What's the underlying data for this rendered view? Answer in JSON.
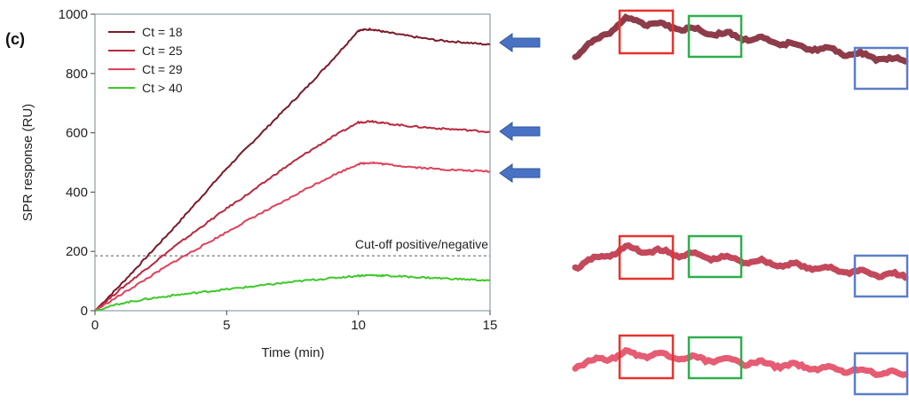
{
  "panel_label": "(c)",
  "chart_data": {
    "type": "line",
    "xlabel": "Time (min)",
    "ylabel": "SPR response (RU)",
    "xlim": [
      0,
      15
    ],
    "ylim": [
      0,
      1000
    ],
    "xticks": [
      0,
      5,
      10,
      15
    ],
    "yticks": [
      0,
      200,
      400,
      600,
      800,
      1000
    ],
    "legend_position": "top-left",
    "series": [
      {
        "name": "Ct = 18",
        "color": "#7a1a2a",
        "x": [
          0,
          1,
          2,
          3,
          4,
          5,
          6,
          7,
          8,
          9,
          10,
          10.5,
          11,
          12,
          13,
          14,
          15
        ],
        "y": [
          0,
          90,
          185,
          280,
          380,
          480,
          570,
          660,
          750,
          845,
          945,
          950,
          940,
          925,
          912,
          905,
          897
        ]
      },
      {
        "name": "Ct = 25",
        "color": "#b8283e",
        "x": [
          0,
          1,
          2,
          3,
          4,
          5,
          6,
          7,
          8,
          9,
          10,
          10.5,
          11,
          12,
          13,
          14,
          15
        ],
        "y": [
          0,
          75,
          145,
          215,
          280,
          345,
          405,
          470,
          530,
          585,
          635,
          640,
          632,
          622,
          615,
          610,
          603
        ]
      },
      {
        "name": "Ct = 29",
        "color": "#e0405a",
        "x": [
          0,
          1,
          2,
          3,
          4,
          5,
          6,
          7,
          8,
          9,
          10,
          10.5,
          11,
          12,
          13,
          14,
          15
        ],
        "y": [
          0,
          55,
          110,
          165,
          215,
          265,
          315,
          360,
          410,
          455,
          495,
          500,
          494,
          485,
          478,
          473,
          470
        ]
      },
      {
        "name": "Ct > 40",
        "color": "#3ec82a",
        "x": [
          0,
          1,
          2,
          3,
          4,
          5,
          6,
          7,
          8,
          9,
          10,
          10.5,
          11,
          12,
          13,
          14,
          15
        ],
        "y": [
          0,
          25,
          40,
          52,
          62,
          72,
          82,
          92,
          102,
          110,
          118,
          120,
          118,
          114,
          110,
          106,
          102
        ]
      }
    ],
    "threshold": {
      "label": "Cut-off positive/negative",
      "y": 185,
      "color": "#888888"
    }
  },
  "arrows": {
    "color": "#4a72c4"
  },
  "zoom_traces": {
    "box_colors": {
      "red": "#e8322c",
      "green": "#2fae4e",
      "blue": "#5b7fc8"
    }
  }
}
